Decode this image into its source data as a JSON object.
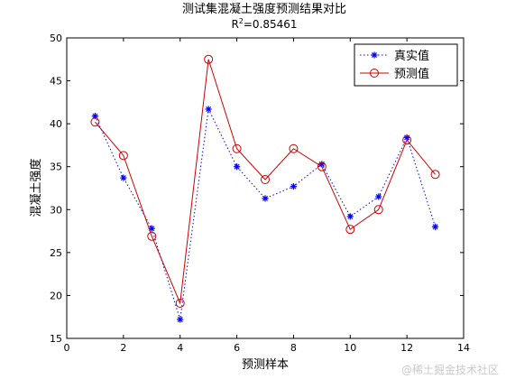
{
  "chart_data": {
    "type": "line",
    "title": "测试集混凝土强度预测结果对比",
    "subtitle_prefix": "R",
    "subtitle_sup": "2",
    "subtitle_suffix": "=0.85461",
    "xlabel": "预测样本",
    "ylabel": "混凝土强度",
    "xlim": [
      0,
      14
    ],
    "ylim": [
      15,
      50
    ],
    "xticks": [
      0,
      2,
      4,
      6,
      8,
      10,
      12,
      14
    ],
    "xtick_labels": [
      "0",
      "2",
      "4",
      "6",
      "8",
      "10",
      "12",
      "14"
    ],
    "yticks": [
      15,
      20,
      25,
      30,
      35,
      40,
      45,
      50
    ],
    "grid": false,
    "legend_position": "top-right",
    "x": [
      1,
      2,
      3,
      4,
      5,
      6,
      7,
      8,
      9,
      10,
      11,
      12,
      13
    ],
    "series": [
      {
        "name": "真实值",
        "color": "#0000ff",
        "marker": "asterisk",
        "line": "dotted",
        "values": [
          40.9,
          33.7,
          27.8,
          17.2,
          41.7,
          35.0,
          31.3,
          32.7,
          35.3,
          29.2,
          31.5,
          38.4,
          28.0
        ]
      },
      {
        "name": "预测值",
        "color": "#cc0000",
        "marker": "circle",
        "line": "solid",
        "values": [
          40.2,
          36.3,
          26.9,
          19.1,
          47.5,
          37.1,
          33.5,
          37.1,
          35.0,
          27.7,
          30.0,
          38.1,
          34.1
        ]
      }
    ]
  },
  "watermark": "@稀土掘金技术社区"
}
